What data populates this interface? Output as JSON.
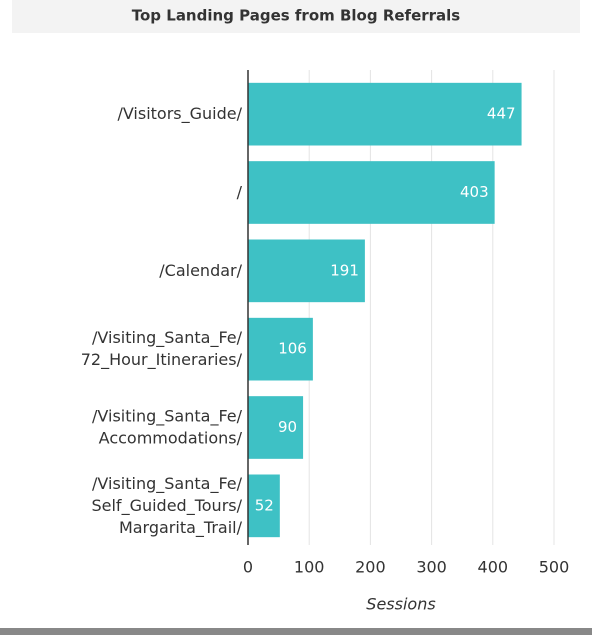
{
  "chart_data": {
    "type": "bar",
    "orientation": "horizontal",
    "title": "Top Landing Pages from Blog Referrals",
    "x_label": "Sessions",
    "categories": [
      [
        "/Visitors_Guide/"
      ],
      [
        "/"
      ],
      [
        "/Calendar/"
      ],
      [
        "/Visiting_Santa_Fe/",
        "72_Hour_Itineraries/"
      ],
      [
        "/Visiting_Santa_Fe/",
        "Accommodations/"
      ],
      [
        "/Visiting_Santa_Fe/",
        "Self_Guided_Tours/",
        "Margarita_Trail/"
      ]
    ],
    "values": [
      447,
      403,
      191,
      106,
      90,
      52
    ],
    "color": "#3ec1c5",
    "xlim": [
      0,
      500
    ],
    "xticks": [
      0,
      100,
      200,
      300,
      400,
      500
    ],
    "grid": true
  }
}
